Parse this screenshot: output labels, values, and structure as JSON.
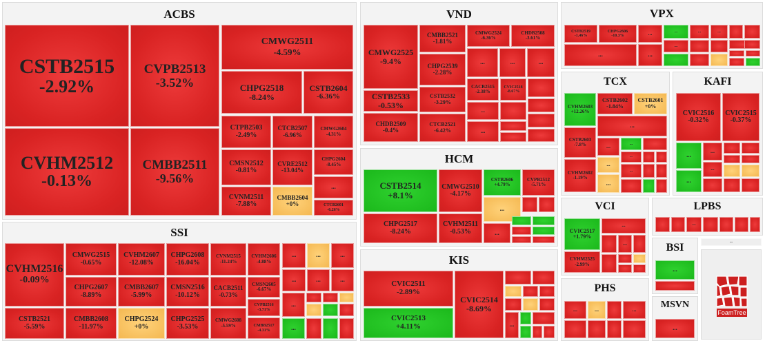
{
  "chart_data": {
    "type": "treemap",
    "colors": {
      "negative": "#d92323",
      "positive": "#1bb81b",
      "neutral": "#f4b852"
    },
    "groups": [
      {
        "name": "ACBS",
        "tiles": [
          {
            "code": "CSTB2515",
            "change": "-2.92%"
          },
          {
            "code": "CVHM2512",
            "change": "-0.13%"
          },
          {
            "code": "CVPB2513",
            "change": "-3.52%"
          },
          {
            "code": "CMBB2511",
            "change": "-9.56%"
          },
          {
            "code": "CMWG2511",
            "change": "-4.59%"
          },
          {
            "code": "CHPG2518",
            "change": "-8.24%"
          },
          {
            "code": "CSTB2604",
            "change": "-6.36%"
          },
          {
            "code": "CTPB2503",
            "change": "-2.49%"
          },
          {
            "code": "CTCB2507",
            "change": "-6.96%"
          },
          {
            "code": "CMWG2604",
            "change": "-4.31%"
          },
          {
            "code": "CMSN2512",
            "change": "-0.81%"
          },
          {
            "code": "CVRE2512",
            "change": "-13.04%"
          },
          {
            "code": "CHPG2604",
            "change": "-8.45%"
          },
          {
            "code": "CVNM2511",
            "change": "-7.88%"
          },
          {
            "code": "CMBB2604",
            "change": "+0%"
          },
          {
            "code": "CTCB2601",
            "change": "-6.26%"
          }
        ]
      },
      {
        "name": "SSI",
        "tiles": [
          {
            "code": "CVHM2516",
            "change": "-0.09%"
          },
          {
            "code": "CSTB2521",
            "change": "-5.59%"
          },
          {
            "code": "CMWG2515",
            "change": "-0.65%"
          },
          {
            "code": "CHPG2607",
            "change": "-8.89%"
          },
          {
            "code": "CMBB2608",
            "change": "-11.97%"
          },
          {
            "code": "CVHM2607",
            "change": "-12.08%"
          },
          {
            "code": "CMBB2607",
            "change": "-5.99%"
          },
          {
            "code": "CHPG2524",
            "change": "+0%"
          },
          {
            "code": "CHPG2608",
            "change": "-16.04%"
          },
          {
            "code": "CMSN2516",
            "change": "-10.12%"
          },
          {
            "code": "CHPG2525",
            "change": "-3.53%"
          },
          {
            "code": "CVNM2515",
            "change": "-11.24%"
          },
          {
            "code": "CACB2511",
            "change": "-0.73%"
          },
          {
            "code": "CMWG2608",
            "change": "-5.59%"
          },
          {
            "code": "CVHM2606",
            "change": "-4.88%"
          },
          {
            "code": "CMSN2605",
            "change": "-6.67%"
          },
          {
            "code": "CVPB2516",
            "change": "-3.71%"
          },
          {
            "code": "CMBB2517",
            "change": "-4.31%"
          }
        ]
      },
      {
        "name": "VND",
        "tiles": [
          {
            "code": "CMWG2525",
            "change": "-9.4%"
          },
          {
            "code": "CSTB2533",
            "change": "-0.53%"
          },
          {
            "code": "CHDB2509",
            "change": "-0.4%"
          },
          {
            "code": "CMBB2521",
            "change": "-1.81%"
          },
          {
            "code": "CHPG2539",
            "change": "-2.28%"
          },
          {
            "code": "CSTB2532",
            "change": "-3.29%"
          },
          {
            "code": "CTCB2521",
            "change": "-6.42%"
          },
          {
            "code": "CMWG2524",
            "change": "-6.36%"
          },
          {
            "code": "CHDB2508",
            "change": "-3.61%"
          },
          {
            "code": "CACB2515",
            "change": "-2.38%"
          },
          {
            "code": "CVIC2518",
            "change": "-8.67%"
          }
        ]
      },
      {
        "name": "HCM",
        "tiles": [
          {
            "code": "CSTB2514",
            "change": "+8.1%"
          },
          {
            "code": "CHPG2517",
            "change": "-8.24%"
          },
          {
            "code": "CMWG2510",
            "change": "-4.17%"
          },
          {
            "code": "CVHM2511",
            "change": "-0.53%"
          },
          {
            "code": "CSTB2606",
            "change": "+4.79%"
          },
          {
            "code": "CVPB2512",
            "change": "-5.71%"
          }
        ]
      },
      {
        "name": "KIS",
        "tiles": [
          {
            "code": "CVIC2511",
            "change": "-2.89%"
          },
          {
            "code": "CVIC2513",
            "change": "+4.11%"
          },
          {
            "code": "CVIC2514",
            "change": "-8.69%"
          }
        ]
      },
      {
        "name": "VPX",
        "tiles": [
          {
            "code": "CSTB2519",
            "change": "-1.46%"
          },
          {
            "code": "CHPG2606",
            "change": "-10.3%"
          }
        ]
      },
      {
        "name": "TCX",
        "tiles": [
          {
            "code": "CVHM2603",
            "change": "+12.26%"
          },
          {
            "code": "CSTB2602",
            "change": "-1.84%"
          },
          {
            "code": "CSTB2601",
            "change": "+0%"
          },
          {
            "code": "CSTB2603",
            "change": "-7.8%"
          },
          {
            "code": "CVHM2602",
            "change": "-1.19%"
          }
        ]
      },
      {
        "name": "KAFI",
        "tiles": [
          {
            "code": "CVIC2516",
            "change": "-0.32%"
          },
          {
            "code": "CVIC2515",
            "change": "-0.37%"
          }
        ]
      },
      {
        "name": "VCI",
        "tiles": [
          {
            "code": "CVIC2517",
            "change": "+1.79%"
          },
          {
            "code": "CVHM2525",
            "change": "-2.99%"
          }
        ]
      },
      {
        "name": "LPBS",
        "tiles": []
      },
      {
        "name": "BSI",
        "tiles": []
      },
      {
        "name": "PHS",
        "tiles": []
      },
      {
        "name": "MSVN",
        "tiles": []
      }
    ],
    "more_label": "...",
    "brand": "FoamTree"
  }
}
